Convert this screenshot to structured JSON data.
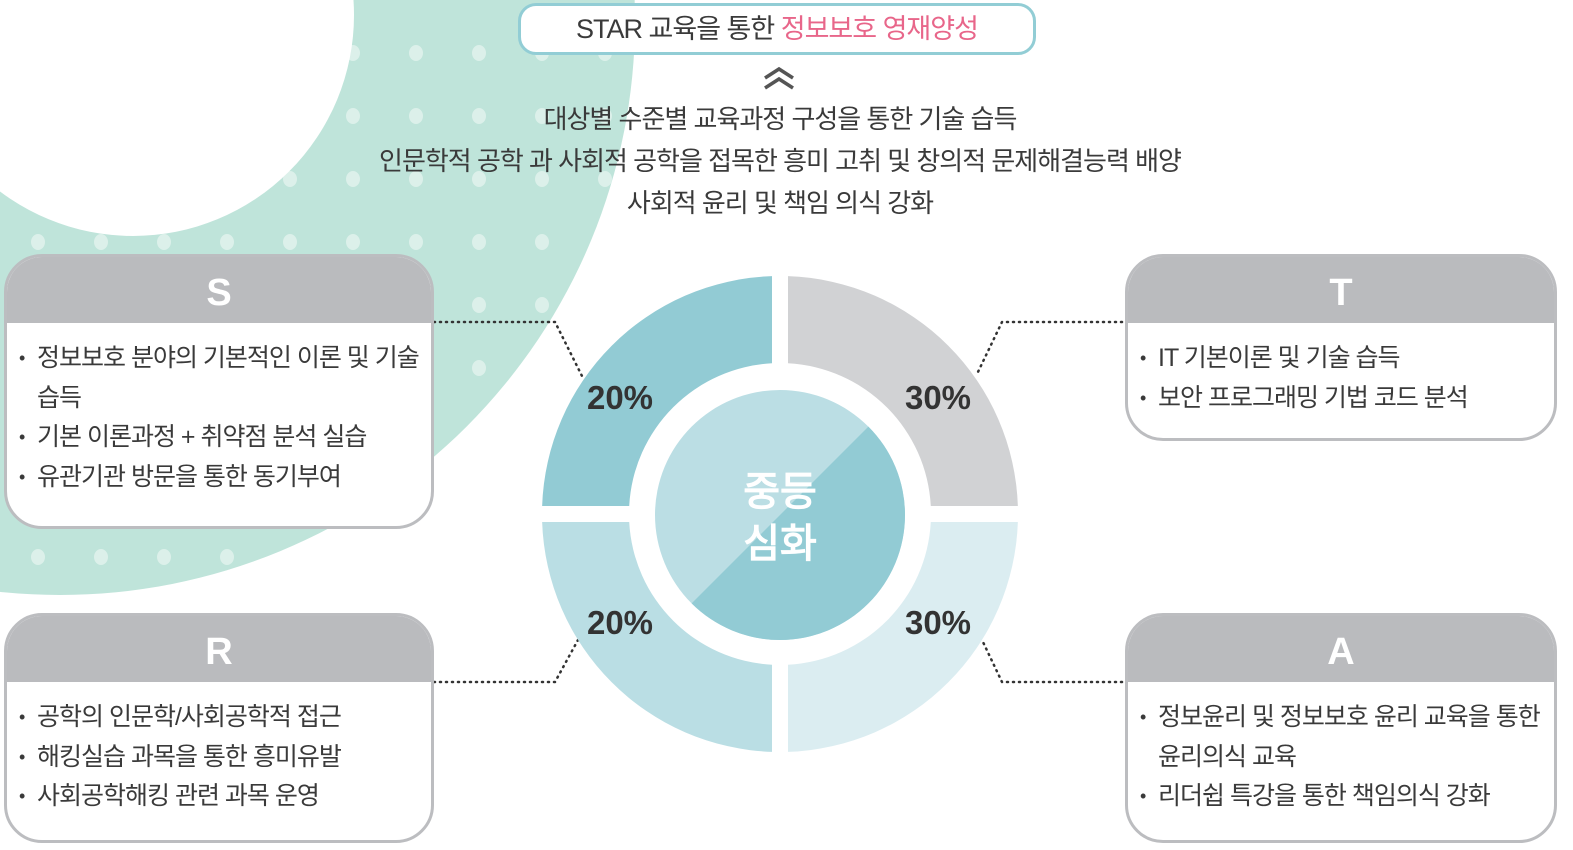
{
  "colors": {
    "teal_bg": "#bfe4da",
    "segment_s": "#92cbd4",
    "segment_t": "#d1d2d4",
    "segment_r": "#badee4",
    "segment_a": "#dbedf1",
    "center_light": "#bbdee4",
    "center_dark": "#92cbd4",
    "title_accent": "#e8668a",
    "card_border": "#bcbdc0"
  },
  "header": {
    "title_prefix": "STAR 교육을 통한 ",
    "title_highlight": "정보보호 영재양성"
  },
  "goals": [
    "대상별 수준별 교육과정 구성을 통한 기술 습득",
    "인문학적 공학 과 사회적 공학을 접목한 흥미 고취 및 창의적 문제해결능력 배양",
    "사회적 윤리 및 책임 의식 강화"
  ],
  "center": {
    "line1": "중등",
    "line2": "심화"
  },
  "segments": [
    {
      "key": "S",
      "percent": "20%",
      "value": 20
    },
    {
      "key": "T",
      "percent": "30%",
      "value": 30
    },
    {
      "key": "R",
      "percent": "20%",
      "value": 20
    },
    {
      "key": "A",
      "percent": "30%",
      "value": 30
    }
  ],
  "cards": {
    "S": {
      "letter": "S",
      "items": [
        "정보보호 분야의 기본적인 이론 및 기술 습득",
        "기본 이론과정 + 취약점 분석 실습",
        "유관기관 방문을 통한 동기부여"
      ]
    },
    "T": {
      "letter": "T",
      "items": [
        "IT 기본이론 및 기술 습득",
        "보안 프로그래밍 기법 코드 분석"
      ]
    },
    "R": {
      "letter": "R",
      "items": [
        "공학의 인문학/사회공학적 접근",
        "해킹실습 과목을 통한 흥미유발",
        "사회공학해킹 관련 과목 운영"
      ]
    },
    "A": {
      "letter": "A",
      "items": [
        "정보윤리 및 정보보호 윤리 교육을 통한 윤리의식 교육",
        "리더쉽 특강을 통한 책임의식 강화"
      ]
    }
  },
  "icons": {
    "up": "double-chevron-up-icon"
  }
}
